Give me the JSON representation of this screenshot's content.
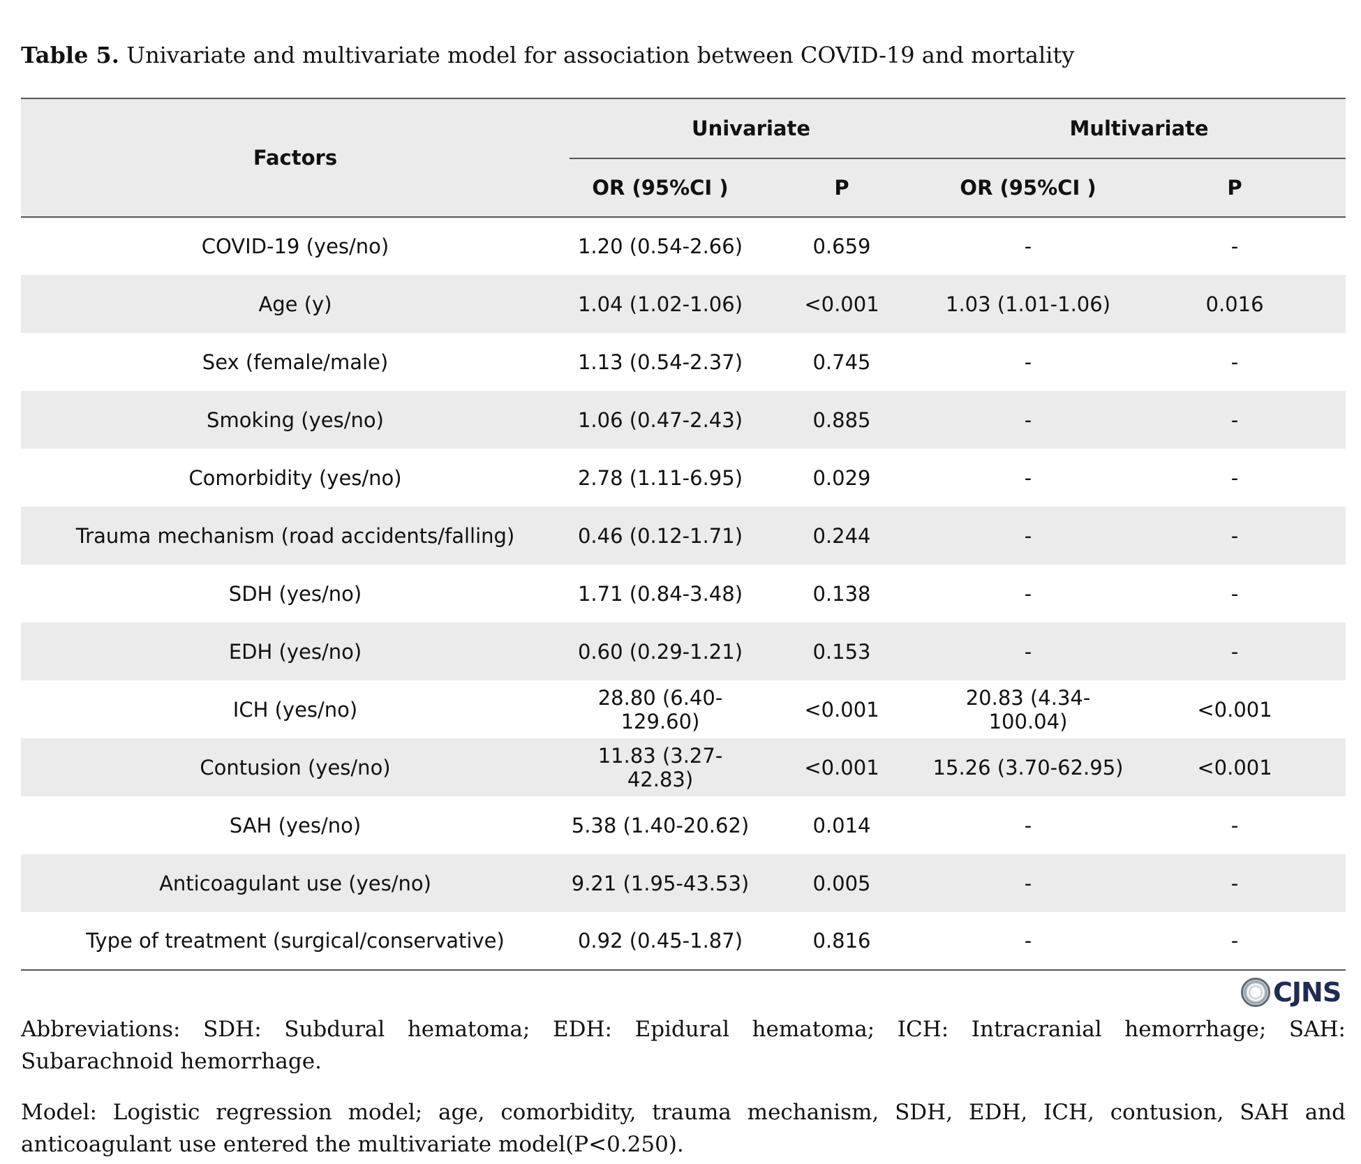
{
  "caption": {
    "label": "Table 5.",
    "text": "Univariate and multivariate model for association between COVID-19 and mortality"
  },
  "table": {
    "headers": {
      "factors": "Factors",
      "univariate": "Univariate",
      "multivariate": "Multivariate",
      "or_ci": "OR (95%CI )",
      "p": "P"
    },
    "rows": [
      {
        "factor": "COVID-19 (yes/no)",
        "uni_or": "1.20 (0.54-2.66)",
        "uni_p": "0.659",
        "multi_or": "-",
        "multi_p": "-"
      },
      {
        "factor": "Age (y)",
        "uni_or": "1.04 (1.02-1.06)",
        "uni_p": "<0.001",
        "multi_or": "1.03 (1.01-1.06)",
        "multi_p": "0.016"
      },
      {
        "factor": "Sex (female/male)",
        "uni_or": "1.13 (0.54-2.37)",
        "uni_p": "0.745",
        "multi_or": "-",
        "multi_p": "-"
      },
      {
        "factor": "Smoking (yes/no)",
        "uni_or": "1.06 (0.47-2.43)",
        "uni_p": "0.885",
        "multi_or": "-",
        "multi_p": "-"
      },
      {
        "factor": "Comorbidity (yes/no)",
        "uni_or": "2.78 (1.11-6.95)",
        "uni_p": "0.029",
        "multi_or": "-",
        "multi_p": "-"
      },
      {
        "factor": "Trauma mechanism (road accidents/falling)",
        "uni_or": "0.46 (0.12-1.71)",
        "uni_p": "0.244",
        "multi_or": "-",
        "multi_p": "-"
      },
      {
        "factor": "SDH (yes/no)",
        "uni_or": "1.71 (0.84-3.48)",
        "uni_p": "0.138",
        "multi_or": "-",
        "multi_p": "-"
      },
      {
        "factor": "EDH (yes/no)",
        "uni_or": "0.60 (0.29-1.21)",
        "uni_p": "0.153",
        "multi_or": "-",
        "multi_p": "-"
      },
      {
        "factor": "ICH (yes/no)",
        "uni_or": "28.80 (6.40-129.60)",
        "uni_p": "<0.001",
        "multi_or": "20.83 (4.34-100.04)",
        "multi_p": "<0.001"
      },
      {
        "factor": "Contusion (yes/no)",
        "uni_or": "11.83 (3.27-42.83)",
        "uni_p": "<0.001",
        "multi_or": "15.26 (3.70-62.95)",
        "multi_p": "<0.001"
      },
      {
        "factor": "SAH (yes/no)",
        "uni_or": "5.38 (1.40-20.62)",
        "uni_p": "0.014",
        "multi_or": "-",
        "multi_p": "-"
      },
      {
        "factor": "Anticoagulant use (yes/no)",
        "uni_or": "9.21 (1.95-43.53)",
        "uni_p": "0.005",
        "multi_or": "-",
        "multi_p": "-"
      },
      {
        "factor": "Type of treatment (surgical/conservative)",
        "uni_or": "0.92 (0.45-1.87)",
        "uni_p": "0.816",
        "multi_or": "-",
        "multi_p": "-"
      }
    ]
  },
  "logo": {
    "text": "CJNS",
    "icon": "journal-seal-icon"
  },
  "notes": {
    "abbreviations": "Abbreviations: SDH: Subdural hematoma; EDH: Epidural hematoma; ICH: Intracranial hemorrhage; SAH: Subarachnoid hemorrhage.",
    "model": "Model: Logistic regression model; age, comorbidity, trauma mechanism, SDH, EDH, ICH, contusion, SAH and anticoagulant use entered the multivariate model(P<0.250)."
  }
}
